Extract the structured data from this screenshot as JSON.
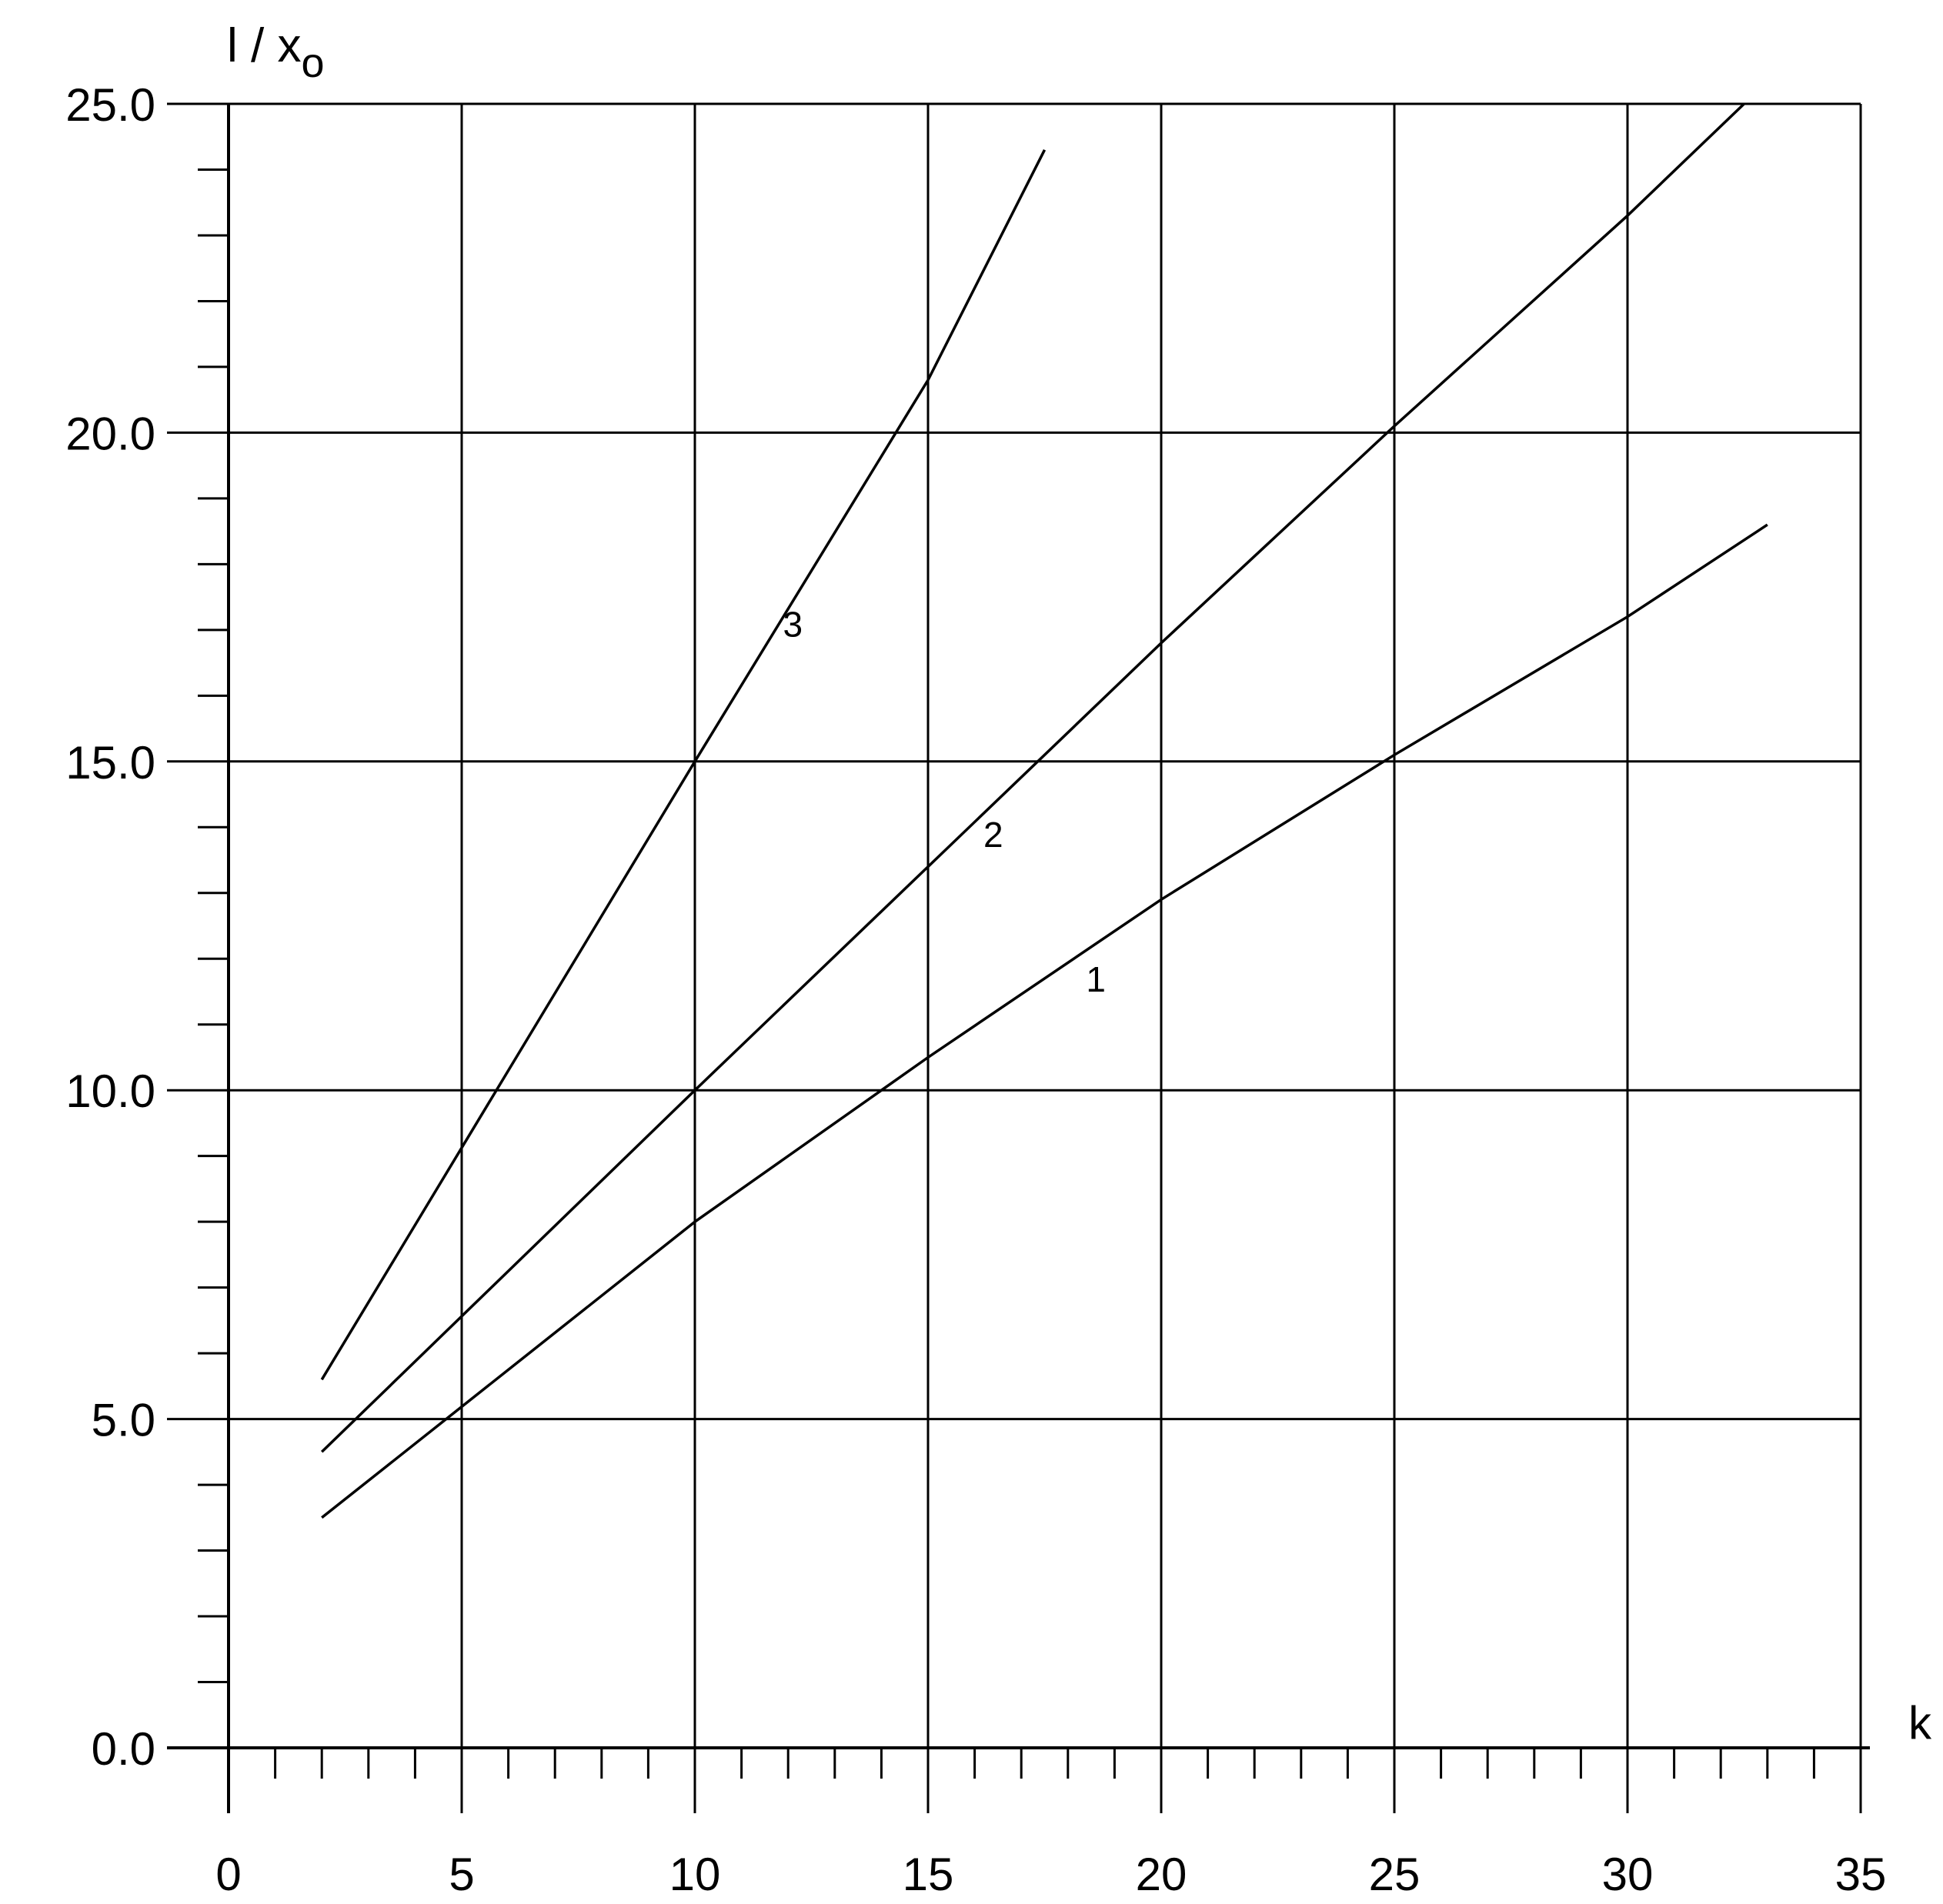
{
  "chart_data": {
    "type": "line",
    "ylabel": "l / x",
    "ylabel_subscript": "o",
    "xlabel": "k",
    "xlim": [
      0,
      35
    ],
    "ylim": [
      0,
      25
    ],
    "grid": true,
    "x_ticks": [
      "0",
      "5",
      "10",
      "15",
      "20",
      "25",
      "30",
      "35"
    ],
    "y_ticks": [
      "0.0",
      "5.0",
      "10.0",
      "15.0",
      "20.0",
      "25.0"
    ],
    "series": [
      {
        "name": "1",
        "x": [
          2,
          10,
          15,
          20,
          25,
          30,
          33
        ],
        "y": [
          3.5,
          8.0,
          10.5,
          12.9,
          15.1,
          17.2,
          18.6
        ]
      },
      {
        "name": "2",
        "x": [
          2,
          10,
          15,
          20,
          25,
          30,
          32.5
        ],
        "y": [
          4.5,
          10.0,
          13.4,
          16.8,
          20.1,
          23.3,
          25.0
        ]
      },
      {
        "name": "3",
        "x": [
          2,
          10,
          15,
          17.5
        ],
        "y": [
          5.6,
          15.0,
          20.8,
          24.3
        ]
      }
    ],
    "curve_labels": [
      {
        "text": "1",
        "x": 18.6,
        "y": 11.5
      },
      {
        "text": "2",
        "x": 16.4,
        "y": 13.7
      },
      {
        "text": "3",
        "x": 12.1,
        "y": 16.9
      }
    ]
  }
}
